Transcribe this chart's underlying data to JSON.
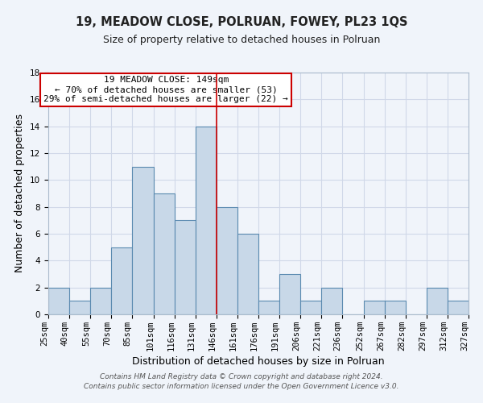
{
  "title": "19, MEADOW CLOSE, POLRUAN, FOWEY, PL23 1QS",
  "subtitle": "Size of property relative to detached houses in Polruan",
  "xlabel": "Distribution of detached houses by size in Polruan",
  "ylabel": "Number of detached properties",
  "bin_labels": [
    "25sqm",
    "40sqm",
    "55sqm",
    "70sqm",
    "85sqm",
    "101sqm",
    "116sqm",
    "131sqm",
    "146sqm",
    "161sqm",
    "176sqm",
    "191sqm",
    "206sqm",
    "221sqm",
    "236sqm",
    "252sqm",
    "267sqm",
    "282sqm",
    "297sqm",
    "312sqm",
    "327sqm"
  ],
  "bin_edges": [
    25,
    40,
    55,
    70,
    85,
    101,
    116,
    131,
    146,
    161,
    176,
    191,
    206,
    221,
    236,
    252,
    267,
    282,
    297,
    312,
    327
  ],
  "counts": [
    2,
    1,
    2,
    5,
    11,
    9,
    7,
    14,
    8,
    6,
    1,
    3,
    1,
    2,
    0,
    1,
    1,
    0,
    2,
    1
  ],
  "bar_color": "#c8d8e8",
  "bar_edgecolor": "#5a8ab0",
  "bar_linewidth": 0.8,
  "grid_color": "#d0d8e8",
  "background_color": "#f0f4fa",
  "vline_x": 146,
  "vline_color": "#cc0000",
  "annotation_title": "19 MEADOW CLOSE: 149sqm",
  "annotation_line1": "← 70% of detached houses are smaller (53)",
  "annotation_line2": "29% of semi-detached houses are larger (22) →",
  "annotation_box_edgecolor": "#cc0000",
  "annotation_box_facecolor": "#ffffff",
  "footer1": "Contains HM Land Registry data © Crown copyright and database right 2024.",
  "footer2": "Contains public sector information licensed under the Open Government Licence v3.0.",
  "ylim": [
    0,
    18
  ],
  "yticks": [
    0,
    2,
    4,
    6,
    8,
    10,
    12,
    14,
    16,
    18
  ],
  "title_fontsize": 10.5,
  "subtitle_fontsize": 9,
  "axis_label_fontsize": 9,
  "tick_fontsize": 7.5,
  "annotation_fontsize": 8,
  "footer_fontsize": 6.5
}
